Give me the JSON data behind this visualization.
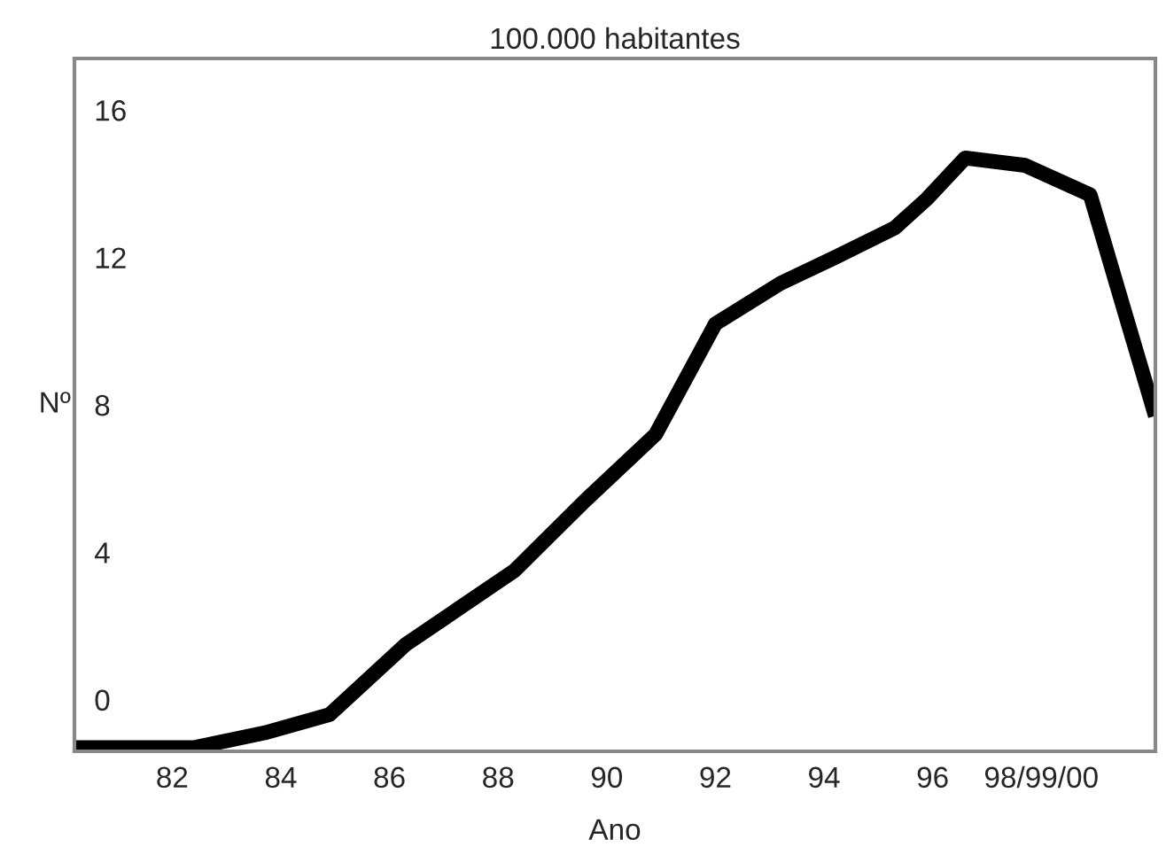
{
  "chart_data": {
    "type": "line",
    "title": "100.000 habitantes",
    "xlabel": "Ano",
    "ylabel": "Nº",
    "x": [
      80.2,
      82.4,
      83.7,
      84.9,
      86.3,
      88.3,
      89.6,
      90.9,
      92.0,
      93.2,
      94.2,
      95.3,
      95.9,
      96.6,
      97.7,
      98.9,
      100.1
    ],
    "series": [
      {
        "color": "#000000",
        "values": [
          -1.3,
          -1.3,
          -0.9,
          -0.4,
          1.5,
          3.5,
          5.4,
          7.2,
          10.2,
          11.3,
          12.0,
          12.8,
          13.6,
          14.7,
          14.5,
          13.7,
          7.7
        ]
      }
    ],
    "xlim": [
      80.2,
      100.1
    ],
    "ylim": [
      -1.4,
      17.4
    ],
    "xticks": [
      82,
      84,
      86,
      88,
      90,
      92,
      94,
      96,
      {
        "value": 98,
        "label": "98/99/00"
      }
    ],
    "yticks": [
      0,
      4,
      8,
      12,
      16
    ],
    "grid": false,
    "legend": false,
    "marker": "none",
    "line_style": "solid"
  }
}
